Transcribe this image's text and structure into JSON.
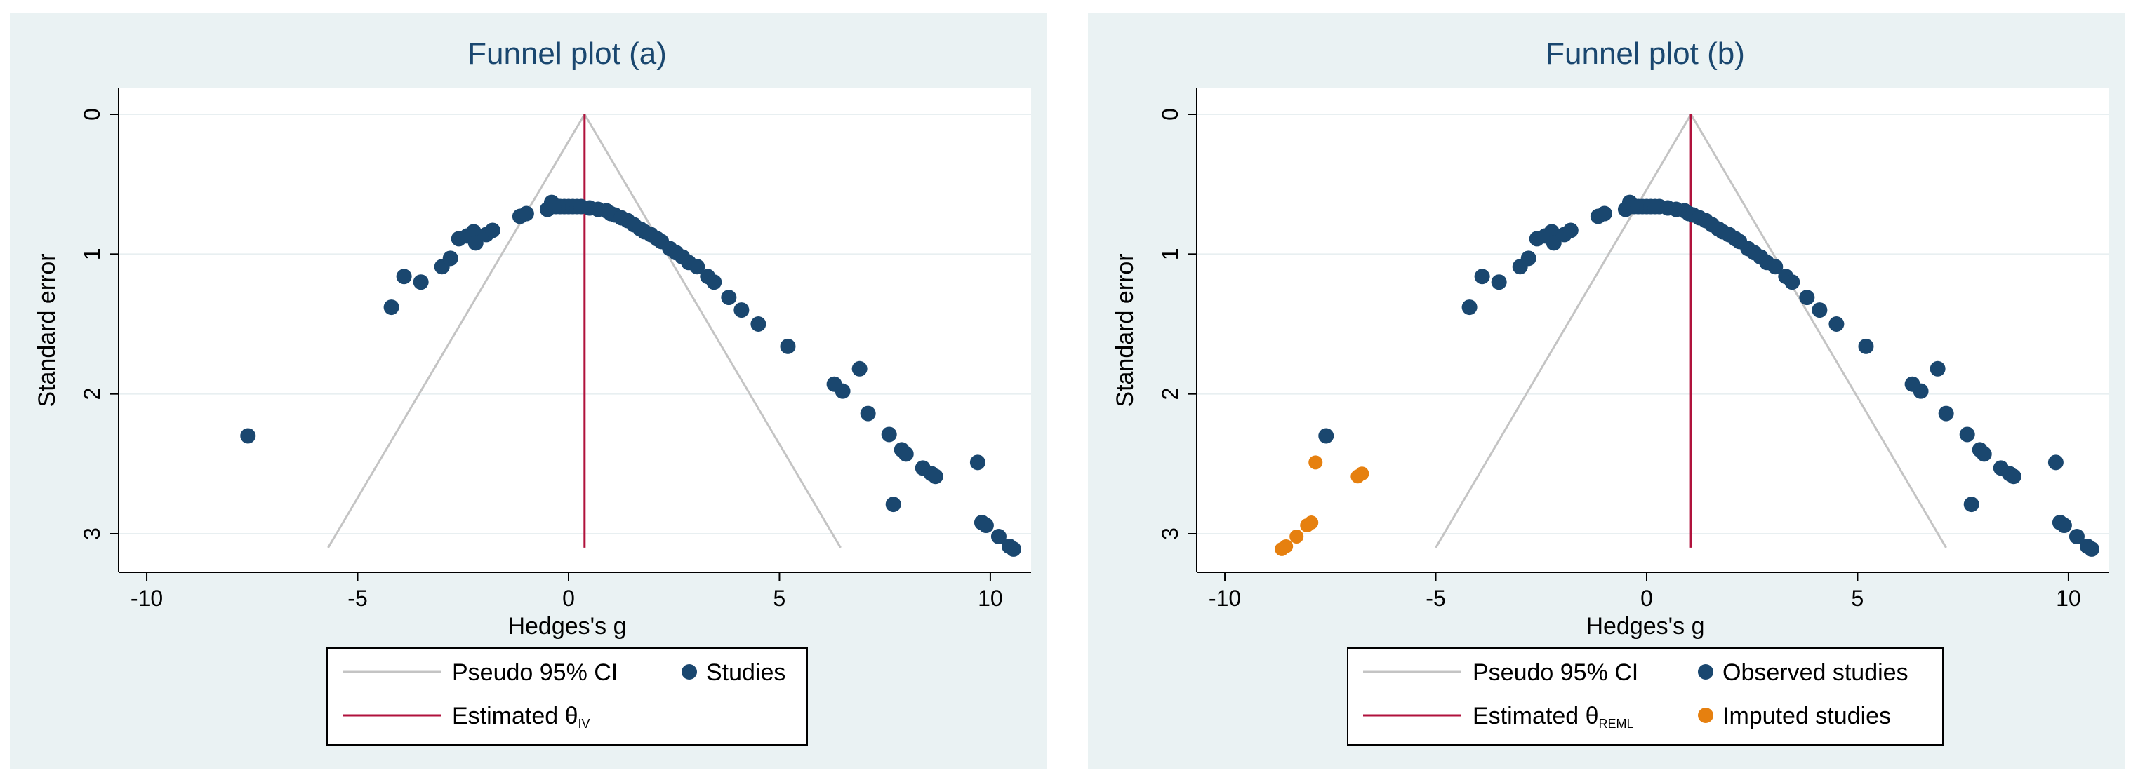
{
  "colors": {
    "ci": "#c4c4c4",
    "estimate": "#b0123c",
    "observed": "#1a476f",
    "imputed": "#e6800f",
    "gridline": "#e8eff1",
    "background": "#eaf2f3"
  },
  "chart_data": [
    {
      "type": "scatter",
      "title": "Funnel plot (a)",
      "xlabel": "Hedges's g",
      "ylabel": "Standard error",
      "xlim": [
        -10.5,
        10.8
      ],
      "ylim": [
        0,
        3.2
      ],
      "y_reversed": true,
      "xticks": [
        -10,
        -5,
        0,
        5,
        10
      ],
      "yticks": [
        0,
        1,
        2,
        3
      ],
      "xtick_labels": [
        "-10",
        "-5",
        "0",
        "5",
        "10"
      ],
      "ytick_labels": [
        "0",
        "1",
        "2",
        "3"
      ],
      "estimate": 0.38,
      "ci": {
        "apex_se": 0,
        "bottom_se": 3.1,
        "left_x": -5.7,
        "right_x": 6.45
      },
      "legend": {
        "ci_label": "Pseudo 95% CI",
        "estimate_label": "Estimated θ",
        "estimate_sub": "IV",
        "observed_label": "Studies",
        "imputed_label": ""
      },
      "series": [
        {
          "name": "Studies",
          "points": [
            [
              -7.6,
              2.3
            ],
            [
              -4.2,
              1.38
            ],
            [
              -3.9,
              1.16
            ],
            [
              -3.5,
              1.2
            ],
            [
              -3.0,
              1.09
            ],
            [
              -2.8,
              1.03
            ],
            [
              -2.6,
              0.89
            ],
            [
              -2.4,
              0.87
            ],
            [
              -2.25,
              0.84
            ],
            [
              -2.2,
              0.92
            ],
            [
              -1.95,
              0.86
            ],
            [
              -1.8,
              0.83
            ],
            [
              -1.15,
              0.73
            ],
            [
              -1.0,
              0.71
            ],
            [
              -0.5,
              0.68
            ],
            [
              -0.4,
              0.63
            ],
            [
              -0.3,
              0.66
            ],
            [
              -0.2,
              0.66
            ],
            [
              -0.1,
              0.66
            ],
            [
              0.0,
              0.66
            ],
            [
              0.1,
              0.66
            ],
            [
              0.2,
              0.66
            ],
            [
              0.3,
              0.66
            ],
            [
              0.5,
              0.67
            ],
            [
              0.7,
              0.68
            ],
            [
              0.9,
              0.69
            ],
            [
              1.0,
              0.71
            ],
            [
              1.1,
              0.72
            ],
            [
              1.25,
              0.74
            ],
            [
              1.4,
              0.76
            ],
            [
              1.55,
              0.79
            ],
            [
              1.7,
              0.82
            ],
            [
              1.8,
              0.84
            ],
            [
              1.95,
              0.86
            ],
            [
              2.1,
              0.89
            ],
            [
              2.2,
              0.91
            ],
            [
              2.4,
              0.96
            ],
            [
              2.55,
              0.99
            ],
            [
              2.7,
              1.02
            ],
            [
              2.85,
              1.06
            ],
            [
              3.05,
              1.09
            ],
            [
              3.3,
              1.16
            ],
            [
              3.45,
              1.2
            ],
            [
              3.8,
              1.31
            ],
            [
              4.1,
              1.4
            ],
            [
              4.5,
              1.5
            ],
            [
              5.2,
              1.66
            ],
            [
              6.3,
              1.93
            ],
            [
              6.5,
              1.98
            ],
            [
              6.9,
              1.82
            ],
            [
              7.1,
              2.14
            ],
            [
              7.6,
              2.29
            ],
            [
              7.7,
              2.79
            ],
            [
              7.9,
              2.4
            ],
            [
              8.0,
              2.43
            ],
            [
              8.4,
              2.53
            ],
            [
              8.6,
              2.57
            ],
            [
              8.7,
              2.59
            ],
            [
              9.7,
              2.49
            ],
            [
              9.8,
              2.92
            ],
            [
              9.9,
              2.94
            ],
            [
              10.2,
              3.02
            ],
            [
              10.45,
              3.09
            ],
            [
              10.55,
              3.11
            ]
          ]
        }
      ]
    },
    {
      "type": "scatter",
      "title": "Funnel plot (b)",
      "xlabel": "Hedges's g",
      "ylabel": "Standard error",
      "xlim": [
        -10.5,
        10.8
      ],
      "ylim": [
        0,
        3.2
      ],
      "y_reversed": true,
      "xticks": [
        -10,
        -5,
        0,
        5,
        10
      ],
      "yticks": [
        0,
        1,
        2,
        3
      ],
      "xtick_labels": [
        "-10",
        "-5",
        "0",
        "5",
        "10"
      ],
      "ytick_labels": [
        "0",
        "1",
        "2",
        "3"
      ],
      "estimate": 1.05,
      "ci": {
        "apex_se": 0,
        "bottom_se": 3.1,
        "left_x": -5.0,
        "right_x": 7.1
      },
      "legend": {
        "ci_label": "Pseudo 95% CI",
        "estimate_label": "Estimated θ",
        "estimate_sub": "REML",
        "observed_label": "Observed studies",
        "imputed_label": "Imputed studies"
      },
      "series": [
        {
          "name": "Observed studies",
          "points": [
            [
              -7.6,
              2.3
            ],
            [
              -4.2,
              1.38
            ],
            [
              -3.9,
              1.16
            ],
            [
              -3.5,
              1.2
            ],
            [
              -3.0,
              1.09
            ],
            [
              -2.8,
              1.03
            ],
            [
              -2.6,
              0.89
            ],
            [
              -2.4,
              0.87
            ],
            [
              -2.25,
              0.84
            ],
            [
              -2.2,
              0.92
            ],
            [
              -1.95,
              0.86
            ],
            [
              -1.8,
              0.83
            ],
            [
              -1.15,
              0.73
            ],
            [
              -1.0,
              0.71
            ],
            [
              -0.5,
              0.68
            ],
            [
              -0.4,
              0.63
            ],
            [
              -0.3,
              0.66
            ],
            [
              -0.2,
              0.66
            ],
            [
              -0.1,
              0.66
            ],
            [
              0.0,
              0.66
            ],
            [
              0.1,
              0.66
            ],
            [
              0.2,
              0.66
            ],
            [
              0.3,
              0.66
            ],
            [
              0.5,
              0.67
            ],
            [
              0.7,
              0.68
            ],
            [
              0.9,
              0.69
            ],
            [
              1.0,
              0.71
            ],
            [
              1.1,
              0.72
            ],
            [
              1.25,
              0.74
            ],
            [
              1.4,
              0.76
            ],
            [
              1.55,
              0.79
            ],
            [
              1.7,
              0.82
            ],
            [
              1.8,
              0.84
            ],
            [
              1.95,
              0.86
            ],
            [
              2.1,
              0.89
            ],
            [
              2.2,
              0.91
            ],
            [
              2.4,
              0.96
            ],
            [
              2.55,
              0.99
            ],
            [
              2.7,
              1.02
            ],
            [
              2.85,
              1.06
            ],
            [
              3.05,
              1.09
            ],
            [
              3.3,
              1.16
            ],
            [
              3.45,
              1.2
            ],
            [
              3.8,
              1.31
            ],
            [
              4.1,
              1.4
            ],
            [
              4.5,
              1.5
            ],
            [
              5.2,
              1.66
            ],
            [
              6.3,
              1.93
            ],
            [
              6.5,
              1.98
            ],
            [
              6.9,
              1.82
            ],
            [
              7.1,
              2.14
            ],
            [
              7.6,
              2.29
            ],
            [
              7.7,
              2.79
            ],
            [
              7.9,
              2.4
            ],
            [
              8.0,
              2.43
            ],
            [
              8.4,
              2.53
            ],
            [
              8.6,
              2.57
            ],
            [
              8.7,
              2.59
            ],
            [
              9.7,
              2.49
            ],
            [
              9.8,
              2.92
            ],
            [
              9.9,
              2.94
            ],
            [
              10.2,
              3.02
            ],
            [
              10.45,
              3.09
            ],
            [
              10.55,
              3.11
            ]
          ]
        },
        {
          "name": "Imputed studies",
          "points": [
            [
              -8.65,
              3.11
            ],
            [
              -8.55,
              3.09
            ],
            [
              -8.3,
              3.02
            ],
            [
              -8.05,
              2.94
            ],
            [
              -7.95,
              2.92
            ],
            [
              -7.85,
              2.49
            ],
            [
              -6.85,
              2.59
            ],
            [
              -6.75,
              2.57
            ]
          ]
        }
      ]
    }
  ]
}
